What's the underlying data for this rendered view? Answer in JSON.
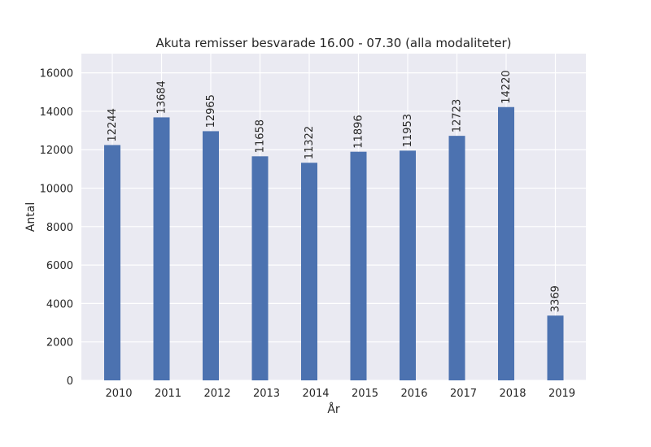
{
  "chart_data": {
    "type": "bar",
    "title": "Akuta remisser besvarade 16.00 - 07.30 (alla modaliteter)",
    "xlabel": "År",
    "ylabel": "Antal",
    "categories": [
      "2010",
      "2011",
      "2012",
      "2013",
      "2014",
      "2015",
      "2016",
      "2017",
      "2018",
      "2019"
    ],
    "values": [
      12244,
      13684,
      12965,
      11658,
      11322,
      11896,
      11953,
      12723,
      14220,
      3369
    ],
    "data_labels": [
      "12244",
      "13684",
      "12965",
      "11658",
      "11322",
      "11896",
      "11953",
      "12723",
      "14220",
      "3369"
    ],
    "ylim": [
      0,
      17000
    ],
    "yticks": [
      0,
      2000,
      4000,
      6000,
      8000,
      10000,
      12000,
      14000,
      16000
    ],
    "ytick_labels": [
      "0",
      "2000",
      "4000",
      "6000",
      "8000",
      "10000",
      "12000",
      "14000",
      "16000"
    ],
    "grid": true,
    "colors": {
      "bar": "#4c72b0",
      "plot_background": "#eaeaf2",
      "grid": "#ffffff",
      "text": "#262626"
    }
  }
}
